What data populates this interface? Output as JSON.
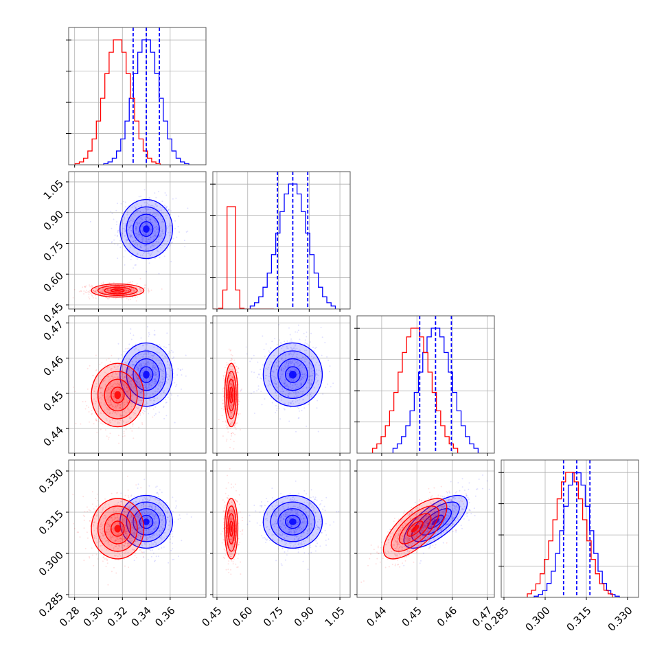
{
  "figure": {
    "background": "#ffffff",
    "series_colors": [
      "#0000ff",
      "#ff0000"
    ],
    "grid": true
  },
  "chart_data": {
    "type": "corner",
    "parameters": [
      {
        "range": [
          0.275,
          0.39
        ],
        "ticks": [
          "0.28",
          "0.30",
          "0.32",
          "0.34",
          "0.36"
        ],
        "tick_values": [
          0.28,
          0.3,
          0.32,
          0.34,
          0.36
        ]
      },
      {
        "range": [
          0.43,
          1.1
        ],
        "ticks": [
          "0.45",
          "0.60",
          "0.75",
          "0.90",
          "1.05"
        ],
        "tick_values": [
          0.45,
          0.6,
          0.75,
          0.9,
          1.05
        ]
      },
      {
        "range": [
          0.433,
          0.472
        ],
        "ticks": [
          "0.44",
          "0.45",
          "0.46",
          "0.47"
        ],
        "tick_values": [
          0.44,
          0.45,
          0.46,
          0.47
        ]
      },
      {
        "range": [
          0.284,
          0.334
        ],
        "ticks": [
          "0.285",
          "0.300",
          "0.315",
          "0.330"
        ],
        "tick_values": [
          0.285,
          0.3,
          0.315,
          0.33
        ]
      }
    ],
    "series": [
      {
        "color": "#0000ff",
        "mean": [
          0.34,
          0.82,
          0.4553,
          0.3115
        ],
        "std": [
          0.011,
          0.072,
          0.0045,
          0.0048
        ],
        "corr": {
          "2_3": 0.7
        },
        "quantiles_16_50_84": [
          [
            0.329,
            0.34,
            0.351
          ],
          [
            0.745,
            0.82,
            0.893
          ],
          [
            0.4508,
            0.4553,
            0.4598
          ],
          [
            0.3067,
            0.3115,
            0.3163
          ]
        ]
      },
      {
        "color": "#ff0000",
        "mean": [
          0.316,
          0.52,
          0.4495,
          0.309
        ],
        "std": [
          0.011,
          0.016,
          0.0045,
          0.0055
        ],
        "corr": {
          "2_3": 0.7
        },
        "quantiles_16_50_84": null
      }
    ],
    "diagonal": "1D histograms with 16/50/84% quantile lines (dashed, blue series)",
    "off_diagonal": "2D density with 0.5/1/1.5/2-sigma contours and scatter points"
  }
}
